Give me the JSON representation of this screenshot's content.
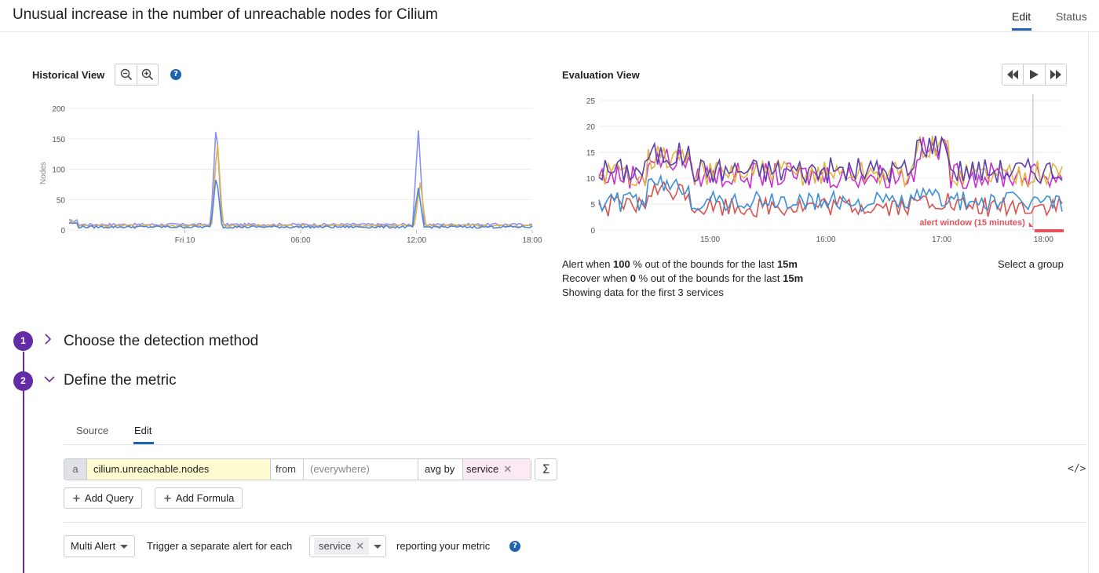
{
  "header": {
    "title": "Unusual increase in the number of unreachable nodes for Cilium",
    "tabs": [
      "Edit",
      "Status"
    ],
    "active_tab": "Edit"
  },
  "historical": {
    "label": "Historical View",
    "chart_data": {
      "type": "line",
      "ylabel": "Nodes",
      "ylim": [
        0,
        200
      ],
      "yticks": [
        "0",
        "50",
        "100",
        "150",
        "200"
      ],
      "xticks": [
        "Fri 10",
        "06:00",
        "12:00",
        "18:00"
      ],
      "series": [
        {
          "color": "#8a8ff0",
          "baseline": 9,
          "spikes": [
            {
              "at": 0.318,
              "value": 180
            },
            {
              "at": 0.754,
              "value": 166
            }
          ]
        },
        {
          "color": "#e0b44a",
          "baseline": 7,
          "spikes": [
            {
              "at": 0.32,
              "value": 150
            },
            {
              "at": 0.758,
              "value": 80
            }
          ]
        },
        {
          "color": "#4f86d9",
          "baseline": 5,
          "spikes": [
            {
              "at": 0.318,
              "value": 92
            },
            {
              "at": 0.754,
              "value": 70
            }
          ]
        }
      ]
    }
  },
  "evaluation": {
    "label": "Evaluation View",
    "chart_data": {
      "type": "line",
      "ylim": [
        0,
        25
      ],
      "yticks": [
        "0",
        "5",
        "10",
        "15",
        "20",
        "25"
      ],
      "xticks": [
        "15:00",
        "16:00",
        "17:00",
        "18:00"
      ],
      "alert_window_label": "alert window (15 minutes)",
      "series": [
        {
          "color": "#5b3fb0",
          "mean": 11.5
        },
        {
          "color": "#e3b43f",
          "mean": 11
        },
        {
          "color": "#cc2fce",
          "mean": 10.5
        },
        {
          "color": "#3b8fd8",
          "mean": 5.5
        },
        {
          "color": "#d9534f",
          "mean": 4.5
        }
      ]
    },
    "alert_line": {
      "prefix": "Alert when",
      "pct": "100",
      "mid": "% out of the bounds for the last",
      "dur": "15m"
    },
    "recover_line": {
      "prefix": "Recover when",
      "pct": "0",
      "mid": "% out of the bounds for the last",
      "dur": "15m"
    },
    "showing": "Showing data for the first 3 services",
    "select_group": "Select a group"
  },
  "steps": [
    {
      "number": "1",
      "title": "Choose the detection method"
    },
    {
      "number": "2",
      "title": "Define the metric"
    }
  ],
  "source_tabs": [
    "Source",
    "Edit"
  ],
  "query": {
    "letter": "a",
    "metric": "cilium.unreachable.nodes",
    "from_label": "from",
    "where_placeholder": "(everywhere)",
    "agg": "avg by",
    "group_tag": "service",
    "sigma": "Σ",
    "code": "</>"
  },
  "buttons": {
    "add_query": "Add Query",
    "add_formula": "Add Formula"
  },
  "multi_alert": {
    "mode": "Multi Alert",
    "prefix": "Trigger a separate alert for each",
    "tag": "service",
    "suffix": "reporting your metric"
  }
}
